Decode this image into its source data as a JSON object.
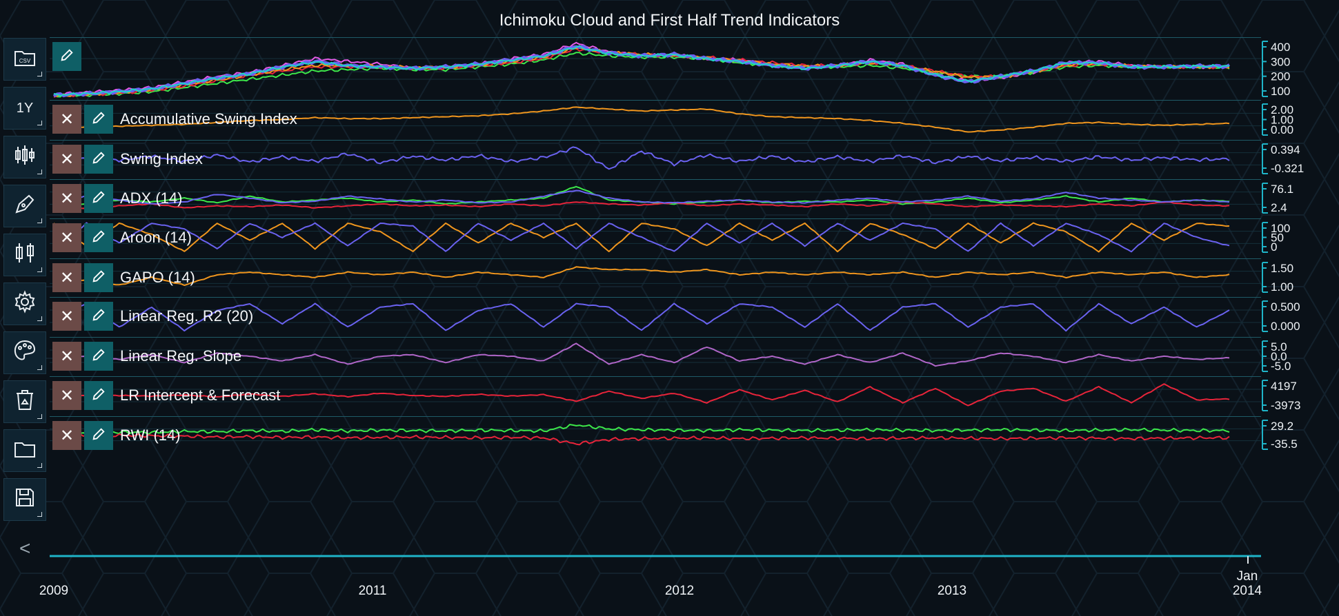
{
  "title": "Ichimoku Cloud and First Half Trend Indicators",
  "toolbar": {
    "items": [
      {
        "name": "csv-open-button",
        "icon": "folder-csv-icon",
        "label": ""
      },
      {
        "name": "range-button",
        "icon": "",
        "label": "1Y"
      },
      {
        "name": "candlestick-button",
        "icon": "candlestick-icon",
        "label": ""
      },
      {
        "name": "draw-tool-button",
        "icon": "pen-icon",
        "label": ""
      },
      {
        "name": "chart-type-button",
        "icon": "bar-chart-icon",
        "label": ""
      },
      {
        "name": "settings-button",
        "icon": "gear-icon",
        "label": ""
      },
      {
        "name": "theme-button",
        "icon": "palette-icon",
        "label": ""
      },
      {
        "name": "recycle-button",
        "icon": "recycle-bin-icon",
        "label": ""
      },
      {
        "name": "open-button",
        "icon": "folder-icon",
        "label": ""
      },
      {
        "name": "save-button",
        "icon": "save-icon",
        "label": ""
      }
    ],
    "collapse_label": "<"
  },
  "colors": {
    "accent": "#1fb4c8",
    "orange": "#f0961e",
    "blue": "#6a62f0",
    "green": "#3de84a",
    "red": "#e8243a",
    "magenta": "#e85ae8",
    "violet": "#b066c8",
    "close_button": "#6b4a47",
    "edit_button": "#0f5f66"
  },
  "x_axis": {
    "ticks": [
      "2009",
      "2011",
      "2012",
      "2013",
      "Jan",
      "2014"
    ]
  },
  "panes": [
    {
      "id": "price",
      "label": "",
      "has_close": false,
      "y_ticks": [
        "400",
        "300",
        "200",
        "100"
      ]
    },
    {
      "id": "asi",
      "label": "Accumulative Swing Index",
      "has_close": true,
      "y_ticks": [
        "2.00",
        "1.00",
        "0.00"
      ]
    },
    {
      "id": "si",
      "label": "Swing Index",
      "has_close": true,
      "y_ticks": [
        "0.394",
        "-0.321"
      ]
    },
    {
      "id": "adx",
      "label": "ADX (14)",
      "has_close": true,
      "y_ticks": [
        "76.1",
        "2.4"
      ]
    },
    {
      "id": "aroon",
      "label": "Aroon (14)",
      "has_close": true,
      "y_ticks": [
        "100",
        "50",
        "0"
      ]
    },
    {
      "id": "gapo",
      "label": "GAPO (14)",
      "has_close": true,
      "y_ticks": [
        "1.50",
        "1.00"
      ]
    },
    {
      "id": "lrr2",
      "label": "Linear Reg. R2 (20)",
      "has_close": true,
      "y_ticks": [
        "0.500",
        "0.000"
      ]
    },
    {
      "id": "lrslope",
      "label": "Linear Reg. Slope",
      "has_close": true,
      "y_ticks": [
        "5.0",
        "0.0",
        "-5.0"
      ]
    },
    {
      "id": "lrint",
      "label": "LR Intercept & Forecast",
      "has_close": true,
      "y_ticks": [
        "4197",
        "-3973"
      ]
    },
    {
      "id": "rwi",
      "label": "RWI (14)",
      "has_close": true,
      "y_ticks": [
        "29.2",
        "-35.5"
      ]
    }
  ],
  "chart_data": {
    "type": "line",
    "title": "Ichimoku Cloud and First Half Trend Indicators",
    "x": [
      "2009",
      "2011",
      "2012",
      "2013",
      "2014"
    ],
    "panes": [
      {
        "name": "price",
        "ylim": [
          20,
          430
        ],
        "series": [
          {
            "color": "#e85ae8",
            "values": [
              40,
              55,
              70,
              90,
              130,
              170,
              200,
              250,
              300,
              280,
              260,
              230,
              240,
              260,
              300,
              330,
              410,
              350,
              320,
              330,
              300,
              290,
              260,
              230,
              250,
              290,
              260,
              180,
              140,
              160,
              200,
              270,
              280,
              250,
              240,
              240,
              240
            ]
          },
          {
            "color": "#3de84a",
            "values": [
              30,
              35,
              45,
              60,
              90,
              120,
              150,
              180,
              210,
              220,
              230,
              220,
              220,
              240,
              260,
              290,
              340,
              320,
              310,
              310,
              300,
              270,
              250,
              240,
              240,
              250,
              230,
              200,
              170,
              170,
              200,
              240,
              250,
              240,
              240,
              240,
              235
            ]
          },
          {
            "color": "#e8243a",
            "values": [
              30,
              38,
              50,
              70,
              100,
              140,
              180,
              210,
              240,
              240,
              240,
              230,
              230,
              250,
              270,
              300,
              370,
              340,
              330,
              320,
              310,
              290,
              270,
              250,
              250,
              270,
              250,
              210,
              170,
              170,
              210,
              250,
              260,
              245,
              240,
              240,
              238
            ]
          },
          {
            "color": "#f0961e",
            "values": [
              30,
              40,
              55,
              75,
              110,
              145,
              180,
              220,
              250,
              250,
              245,
              235,
              235,
              255,
              280,
              310,
              380,
              345,
              330,
              325,
              305,
              285,
              260,
              245,
              250,
              270,
              250,
              205,
              165,
              165,
              205,
              255,
              262,
              246,
              240,
              240,
              240
            ]
          },
          {
            "color": "#6a62f0",
            "values": [
              35,
              45,
              60,
              80,
              120,
              160,
              190,
              240,
              280,
              250,
              240,
              230,
              240,
              260,
              290,
              320,
              390,
              340,
              320,
              330,
              300,
              280,
              250,
              230,
              250,
              280,
              250,
              180,
              130,
              170,
              210,
              270,
              270,
              240,
              240,
              245,
              245
            ]
          },
          {
            "color": "#1fd6c8",
            "values": [
              35,
              45,
              60,
              80,
              118,
              158,
              190,
              238,
              275,
              248,
              238,
              228,
              238,
              258,
              288,
              318,
              385,
              338,
              318,
              328,
              298,
              278,
              248,
              228,
              248,
              278,
              248,
              182,
              134,
              172,
              212,
              268,
              268,
              240,
              240,
              244,
              244
            ]
          }
        ]
      },
      {
        "name": "Accumulative Swing Index",
        "ylim": [
          -0.8,
          2.6
        ],
        "series": [
          {
            "color": "#f0961e",
            "values": [
              0.0,
              0.1,
              0.2,
              0.3,
              0.4,
              0.6,
              0.8,
              0.9,
              1.1,
              1.0,
              1.0,
              1.1,
              1.2,
              1.3,
              1.5,
              1.8,
              2.2,
              2.0,
              1.8,
              1.9,
              2.0,
              1.5,
              1.2,
              1.1,
              1.0,
              0.8,
              0.5,
              0.1,
              -0.4,
              -0.2,
              0.1,
              0.5,
              0.6,
              0.4,
              0.3,
              0.4,
              0.5
            ]
          }
        ]
      },
      {
        "name": "Swing Index",
        "ylim": [
          -0.6,
          0.6
        ],
        "series": [
          {
            "color": "#6a62f0",
            "values": [
              0.0,
              0.02,
              -0.05,
              0.1,
              -0.1,
              0.15,
              -0.12,
              0.08,
              -0.1,
              0.2,
              -0.15,
              0.1,
              -0.05,
              0.12,
              -0.1,
              0.05,
              0.45,
              -0.4,
              0.3,
              -0.2,
              0.15,
              -0.1,
              0.1,
              -0.12,
              0.08,
              -0.1,
              0.12,
              -0.15,
              0.1,
              -0.08,
              0.06,
              -0.1,
              0.08,
              -0.05,
              0.05,
              -0.04,
              0.0
            ]
          }
        ]
      },
      {
        "name": "ADX (14)",
        "ylim": [
          0,
          80
        ],
        "series": [
          {
            "color": "#3de84a",
            "values": [
              20,
              25,
              35,
              30,
              40,
              28,
              45,
              30,
              35,
              40,
              30,
              35,
              25,
              30,
              35,
              40,
              70,
              35,
              30,
              25,
              30,
              35,
              28,
              32,
              30,
              35,
              25,
              30,
              40,
              28,
              35,
              45,
              30,
              40,
              30,
              35,
              32
            ]
          },
          {
            "color": "#e8243a",
            "values": [
              10,
              15,
              20,
              25,
              15,
              20,
              18,
              22,
              15,
              20,
              25,
              20,
              22,
              18,
              25,
              20,
              30,
              25,
              22,
              28,
              20,
              25,
              22,
              18,
              25,
              20,
              30,
              25,
              18,
              22,
              20,
              18,
              25,
              20,
              30,
              22,
              20
            ]
          },
          {
            "color": "#6a62f0",
            "values": [
              30,
              45,
              35,
              25,
              30,
              50,
              40,
              28,
              32,
              45,
              38,
              30,
              35,
              28,
              30,
              45,
              60,
              40,
              30,
              28,
              32,
              35,
              30,
              28,
              35,
              40,
              30,
              35,
              45,
              32,
              38,
              55,
              40,
              35,
              30,
              35,
              30
            ]
          }
        ]
      },
      {
        "name": "Aroon (14)",
        "ylim": [
          -5,
          105
        ],
        "series": [
          {
            "color": "#f0961e",
            "values": [
              100,
              20,
              100,
              60,
              0,
              100,
              40,
              100,
              10,
              100,
              70,
              0,
              100,
              30,
              100,
              50,
              100,
              0,
              100,
              80,
              20,
              100,
              40,
              100,
              0,
              100,
              60,
              10,
              100,
              30,
              100,
              70,
              0,
              100,
              40,
              100,
              90
            ]
          },
          {
            "color": "#6a62f0",
            "values": [
              0,
              100,
              30,
              100,
              80,
              10,
              100,
              50,
              100,
              20,
              100,
              90,
              0,
              100,
              40,
              100,
              10,
              100,
              50,
              0,
              100,
              30,
              100,
              20,
              100,
              40,
              100,
              80,
              0,
              100,
              20,
              100,
              60,
              0,
              100,
              50,
              20
            ]
          }
        ]
      },
      {
        "name": "GAPO (14)",
        "ylim": [
          0.7,
          1.9
        ],
        "series": [
          {
            "color": "#f0961e",
            "values": [
              1.1,
              1.2,
              1.0,
              1.3,
              1.0,
              1.4,
              1.5,
              1.4,
              1.3,
              1.5,
              1.4,
              1.5,
              1.3,
              1.5,
              1.4,
              1.3,
              1.7,
              1.6,
              1.6,
              1.5,
              1.6,
              1.4,
              1.5,
              1.4,
              1.5,
              1.4,
              1.5,
              1.3,
              1.5,
              1.4,
              1.5,
              1.3,
              1.5,
              1.4,
              1.5,
              1.3,
              1.4
            ]
          }
        ]
      },
      {
        "name": "Linear Reg. R2 (20)",
        "ylim": [
          -0.05,
          0.9
        ],
        "series": [
          {
            "color": "#6a62f0",
            "values": [
              0.4,
              0.8,
              0.1,
              0.7,
              0.0,
              0.6,
              0.8,
              0.2,
              0.8,
              0.1,
              0.7,
              0.8,
              0.0,
              0.6,
              0.8,
              0.1,
              0.8,
              0.7,
              0.0,
              0.8,
              0.2,
              0.8,
              0.7,
              0.1,
              0.8,
              0.0,
              0.7,
              0.8,
              0.1,
              0.7,
              0.8,
              0.0,
              0.8,
              0.2,
              0.7,
              0.1,
              0.6
            ]
          }
        ]
      },
      {
        "name": "Linear Reg. Slope",
        "ylim": [
          -9,
          11
        ],
        "series": [
          {
            "color": "#b066c8",
            "values": [
              0,
              1,
              -1,
              2,
              -3,
              3,
              1,
              -2,
              2,
              -4,
              1,
              2,
              -3,
              2,
              1,
              -2,
              9,
              -4,
              2,
              -3,
              7,
              -2,
              1,
              -4,
              2,
              -3,
              3,
              -5,
              -2,
              3,
              1,
              -3,
              2,
              -2,
              1,
              -1,
              0
            ]
          }
        ]
      },
      {
        "name": "LR Intercept & Forecast",
        "ylim": [
          -5500,
          5500
        ],
        "series": [
          {
            "color": "#e8243a",
            "values": [
              0,
              0,
              0,
              -200,
              200,
              -500,
              500,
              -300,
              600,
              -400,
              800,
              0,
              -300,
              400,
              -200,
              300,
              -2000,
              1500,
              -1000,
              800,
              -2500,
              2000,
              -1500,
              1800,
              -2200,
              3000,
              -2500,
              2500,
              -3500,
              1500,
              2500,
              -2000,
              3000,
              -2500,
              4000,
              -1500,
              -1200
            ]
          }
        ]
      },
      {
        "name": "RWI (14)",
        "ylim": [
          -40,
          35
        ],
        "series": [
          {
            "color": "#3de84a",
            "values": [
              0,
              2,
              4,
              3,
              6,
              5,
              8,
              6,
              10,
              7,
              9,
              8,
              7,
              9,
              8,
              7,
              22,
              12,
              10,
              9,
              8,
              10,
              9,
              8,
              9,
              10,
              9,
              8,
              9,
              10,
              9,
              8,
              9,
              10,
              9,
              8,
              8
            ]
          },
          {
            "color": "#e8243a",
            "values": [
              0,
              -2,
              -4,
              -5,
              -6,
              -8,
              -7,
              -9,
              -8,
              -10,
              -9,
              -8,
              -9,
              -10,
              -9,
              -10,
              -25,
              -14,
              -12,
              -11,
              -10,
              -12,
              -11,
              -10,
              -11,
              -12,
              -11,
              -10,
              -11,
              -12,
              -11,
              -10,
              -11,
              -12,
              -11,
              -10,
              -10
            ]
          }
        ]
      }
    ]
  }
}
